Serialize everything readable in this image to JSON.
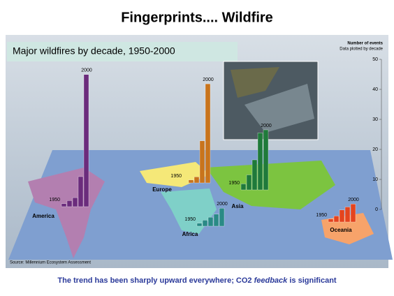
{
  "chart_data": {
    "type": "bar",
    "title": "Fingerprints.... Wildfire",
    "subtitle": "Major wildfires by decade, 1950-2000",
    "y_title": [
      "Number of events",
      "Data plotted by decade"
    ],
    "categories": [
      "1950",
      null,
      null,
      null,
      "2000"
    ],
    "series": [
      {
        "name": "America",
        "color": "#6b2c7c",
        "values": [
          1,
          2,
          3,
          10,
          44
        ]
      },
      {
        "name": "Europe",
        "color": "#c8741c",
        "values": [
          0,
          1,
          2,
          14,
          33
        ]
      },
      {
        "name": "Asia",
        "color": "#1f7a3a",
        "values": [
          2,
          5,
          10,
          19,
          20
        ]
      },
      {
        "name": "Africa",
        "color": "#2a8a86",
        "values": [
          1,
          2,
          3,
          4,
          6
        ]
      },
      {
        "name": "Oceania",
        "color": "#e4441e",
        "values": [
          1,
          2,
          4,
          5,
          6
        ]
      }
    ],
    "ylim": [
      0,
      50
    ],
    "yticks": [
      0,
      10,
      20,
      30,
      40,
      50
    ],
    "source": "Source: Millennium Ecosystem Assessment",
    "caption": [
      "The trend has been sharply upward everywhere; CO2 ",
      "feedback",
      " is significant"
    ]
  }
}
